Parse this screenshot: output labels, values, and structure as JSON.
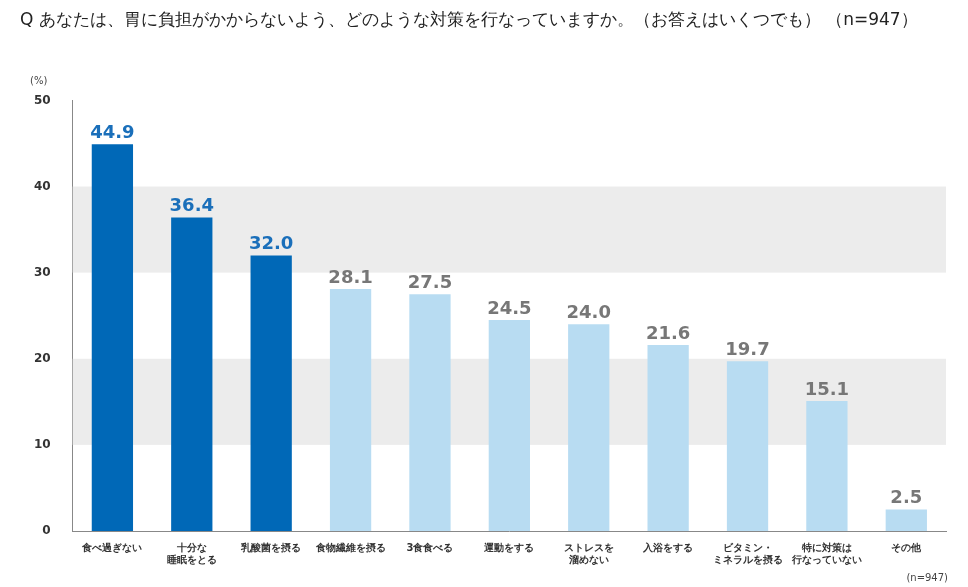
{
  "chart_data": {
    "type": "bar",
    "title": "Q あなたは、胃に負担がかからないよう、どのような対策を行なっていますか。（お答えはいくつでも） （n=947）",
    "y_label": "(%)",
    "note": "(n=947)",
    "categories": [
      "食べ過ぎない",
      [
        "十分な",
        "睡眠をとる"
      ],
      "乳酸菌を摂る",
      "食物繊維を摂る",
      "3食食べる",
      "運動をする",
      [
        "ストレスを",
        "溜めない"
      ],
      "入浴をする",
      [
        "ビタミン・",
        "ミネラルを摂る"
      ],
      [
        "特に対策は",
        "行なっていない"
      ],
      "その他"
    ],
    "values": [
      44.9,
      36.4,
      32.0,
      28.1,
      27.5,
      24.5,
      24.0,
      21.6,
      19.7,
      15.1,
      2.5
    ],
    "value_labels": [
      "44.9",
      "36.4",
      "32.0",
      "28.1",
      "27.5",
      "24.5",
      "24.0",
      "21.6",
      "19.7",
      "15.1",
      "2.5"
    ],
    "colors": [
      "#0068b7",
      "#0068b7",
      "#0068b7",
      "#b8dcf2",
      "#b8dcf2",
      "#b8dcf2",
      "#b8dcf2",
      "#b8dcf2",
      "#b8dcf2",
      "#b8dcf2",
      "#b8dcf2"
    ],
    "ylim": [
      0,
      50
    ],
    "yticks": [
      0,
      10,
      20,
      30,
      40,
      50
    ],
    "grid": true,
    "data_labels": true
  }
}
